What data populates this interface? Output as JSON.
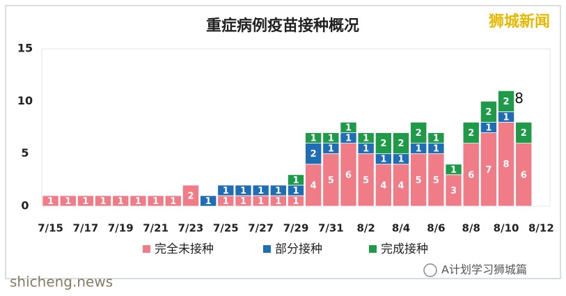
{
  "chart_data": {
    "type": "stacked_bar",
    "title": "重症病例疫苗接种概况",
    "categories": [
      "7/15",
      null,
      "7/17",
      null,
      "7/19",
      null,
      "7/21",
      null,
      "7/23",
      null,
      "7/25",
      null,
      "7/27",
      null,
      "7/29",
      null,
      "7/31",
      null,
      "8/2",
      null,
      "8/4",
      null,
      "8/6",
      null,
      "8/8",
      null,
      "8/10",
      null,
      "8/12"
    ],
    "series": [
      {
        "name": "完全未接种",
        "color": "#f07c87",
        "values": [
          1,
          1,
          1,
          1,
          1,
          1,
          1,
          1,
          2,
          0,
          1,
          1,
          1,
          1,
          1,
          4,
          5,
          6,
          5,
          4,
          4,
          5,
          5,
          3,
          6,
          7,
          8,
          6,
          null
        ]
      },
      {
        "name": "部分接种",
        "color": "#1f6db5",
        "values": [
          0,
          0,
          0,
          0,
          0,
          0,
          0,
          0,
          0,
          1,
          1,
          1,
          1,
          1,
          1,
          2,
          1,
          1,
          1,
          1,
          1,
          1,
          1,
          0,
          0,
          1,
          1,
          0,
          null
        ]
      },
      {
        "name": "完成接种",
        "color": "#1e9a48",
        "values": [
          0,
          0,
          0,
          0,
          0,
          0,
          0,
          0,
          0,
          0,
          0,
          0,
          0,
          0,
          1,
          1,
          1,
          1,
          1,
          2,
          2,
          2,
          1,
          1,
          2,
          2,
          2,
          2,
          null
        ]
      }
    ],
    "ylim": [
      0,
      15
    ],
    "yticks": [
      0,
      5,
      10,
      15
    ],
    "grid": false,
    "legend": "bottom",
    "annotation": "8"
  },
  "watermark": "狮城新闻",
  "footer": {
    "site": "shicheng.news",
    "account": "A计划学习狮城篇"
  }
}
